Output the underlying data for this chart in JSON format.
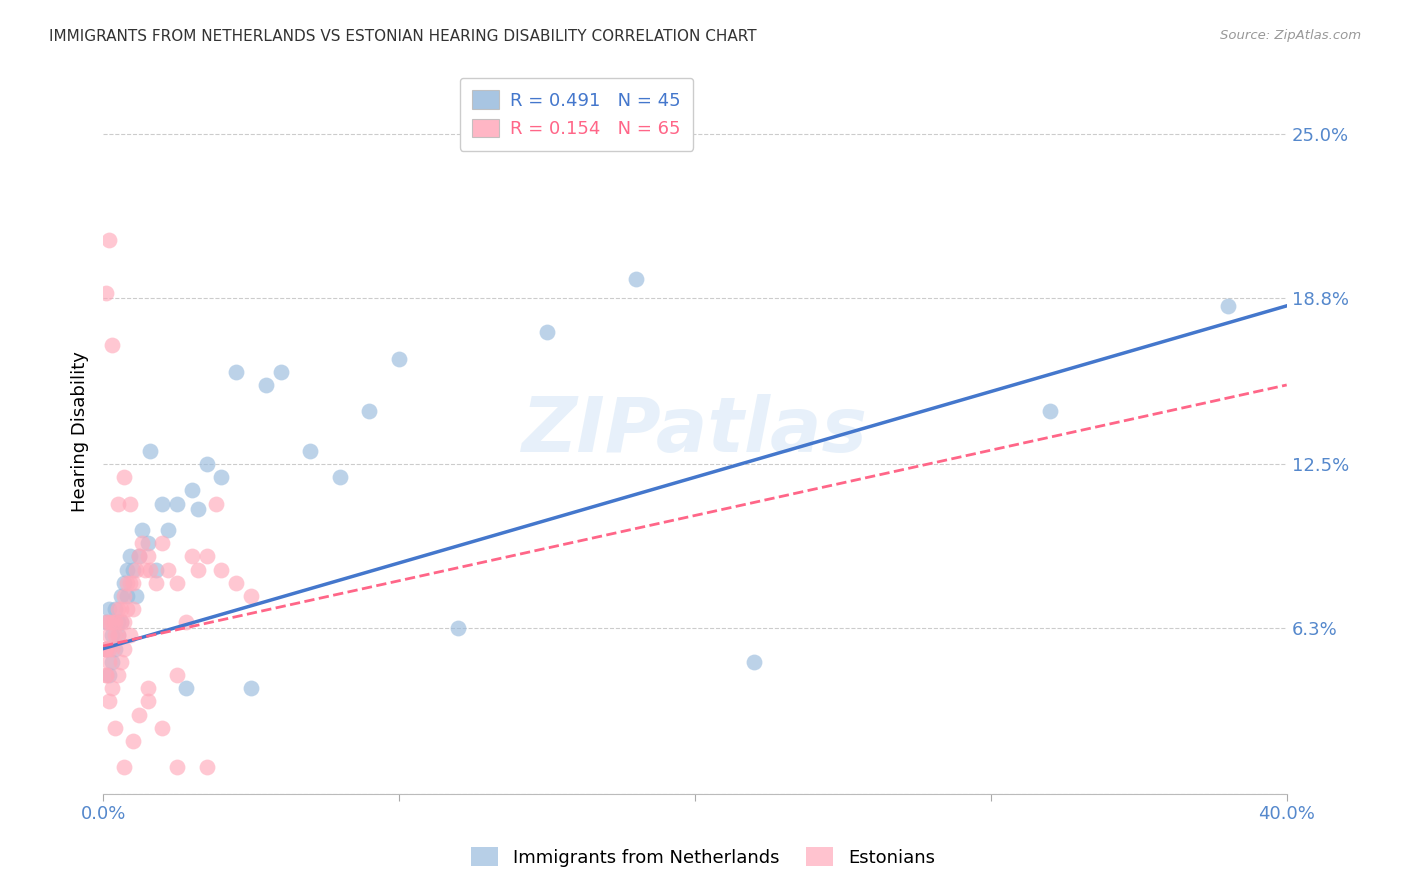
{
  "title": "IMMIGRANTS FROM NETHERLANDS VS ESTONIAN HEARING DISABILITY CORRELATION CHART",
  "source": "Source: ZipAtlas.com",
  "ylabel": "Hearing Disability",
  "watermark": "ZIPatlas",
  "blue_color": "#99BBDD",
  "pink_color": "#FFAABB",
  "blue_line_color": "#4477CC",
  "pink_line_color": "#FF6688",
  "title_color": "#333333",
  "axis_tick_color": "#5588CC",
  "grid_color": "#CCCCCC",
  "blue_scatter_x": [
    0.001,
    0.001,
    0.002,
    0.002,
    0.003,
    0.003,
    0.004,
    0.004,
    0.005,
    0.005,
    0.006,
    0.006,
    0.007,
    0.008,
    0.008,
    0.009,
    0.01,
    0.011,
    0.012,
    0.013,
    0.015,
    0.016,
    0.018,
    0.02,
    0.022,
    0.025,
    0.028,
    0.03,
    0.032,
    0.035,
    0.04,
    0.045,
    0.05,
    0.055,
    0.06,
    0.07,
    0.08,
    0.09,
    0.1,
    0.12,
    0.15,
    0.18,
    0.22,
    0.32,
    0.38
  ],
  "blue_scatter_y": [
    0.055,
    0.065,
    0.045,
    0.07,
    0.05,
    0.06,
    0.055,
    0.07,
    0.065,
    0.06,
    0.075,
    0.065,
    0.08,
    0.075,
    0.085,
    0.09,
    0.085,
    0.075,
    0.09,
    0.1,
    0.095,
    0.13,
    0.085,
    0.11,
    0.1,
    0.11,
    0.04,
    0.115,
    0.108,
    0.125,
    0.12,
    0.16,
    0.04,
    0.155,
    0.16,
    0.13,
    0.12,
    0.145,
    0.165,
    0.063,
    0.175,
    0.195,
    0.05,
    0.145,
    0.185
  ],
  "pink_scatter_x": [
    0.0005,
    0.001,
    0.001,
    0.001,
    0.001,
    0.002,
    0.002,
    0.002,
    0.002,
    0.003,
    0.003,
    0.003,
    0.004,
    0.004,
    0.005,
    0.005,
    0.005,
    0.006,
    0.006,
    0.006,
    0.007,
    0.007,
    0.007,
    0.008,
    0.008,
    0.009,
    0.009,
    0.01,
    0.01,
    0.011,
    0.012,
    0.013,
    0.014,
    0.015,
    0.016,
    0.018,
    0.02,
    0.022,
    0.025,
    0.028,
    0.03,
    0.032,
    0.035,
    0.038,
    0.04,
    0.045,
    0.05,
    0.001,
    0.002,
    0.003,
    0.005,
    0.007,
    0.009,
    0.012,
    0.015,
    0.02,
    0.025,
    0.001,
    0.002,
    0.004,
    0.007,
    0.01,
    0.015,
    0.025,
    0.035
  ],
  "pink_scatter_y": [
    0.055,
    0.045,
    0.055,
    0.065,
    0.055,
    0.05,
    0.055,
    0.065,
    0.06,
    0.04,
    0.055,
    0.065,
    0.06,
    0.065,
    0.045,
    0.06,
    0.07,
    0.05,
    0.065,
    0.07,
    0.055,
    0.065,
    0.075,
    0.07,
    0.08,
    0.06,
    0.08,
    0.07,
    0.08,
    0.085,
    0.09,
    0.095,
    0.085,
    0.09,
    0.085,
    0.08,
    0.095,
    0.085,
    0.08,
    0.065,
    0.09,
    0.085,
    0.09,
    0.11,
    0.085,
    0.08,
    0.075,
    0.19,
    0.21,
    0.17,
    0.11,
    0.12,
    0.11,
    0.03,
    0.04,
    0.025,
    0.01,
    0.045,
    0.035,
    0.025,
    0.01,
    0.02,
    0.035,
    0.045,
    0.01
  ],
  "xlim": [
    0.0,
    0.4
  ],
  "ylim": [
    0.0,
    0.275
  ],
  "ytick_values": [
    0.0,
    0.063,
    0.125,
    0.188,
    0.25
  ],
  "ytick_labels": [
    "",
    "6.3%",
    "12.5%",
    "18.8%",
    "25.0%"
  ],
  "xtick_values": [
    0.0,
    0.1,
    0.2,
    0.3,
    0.4
  ],
  "xtick_labels": [
    "0.0%",
    "",
    "",
    "",
    "40.0%"
  ],
  "legend_blue_R": "R = 0.491",
  "legend_blue_N": "N = 45",
  "legend_pink_R": "R = 0.154",
  "legend_pink_N": "N = 65",
  "blue_line_x0": 0.0,
  "blue_line_x1": 0.4,
  "blue_line_y0": 0.055,
  "blue_line_y1": 0.185,
  "pink_line_x0": 0.0,
  "pink_line_x1": 0.4,
  "pink_line_y0": 0.056,
  "pink_line_y1": 0.155,
  "figsize": [
    14.06,
    8.92
  ],
  "dpi": 100
}
